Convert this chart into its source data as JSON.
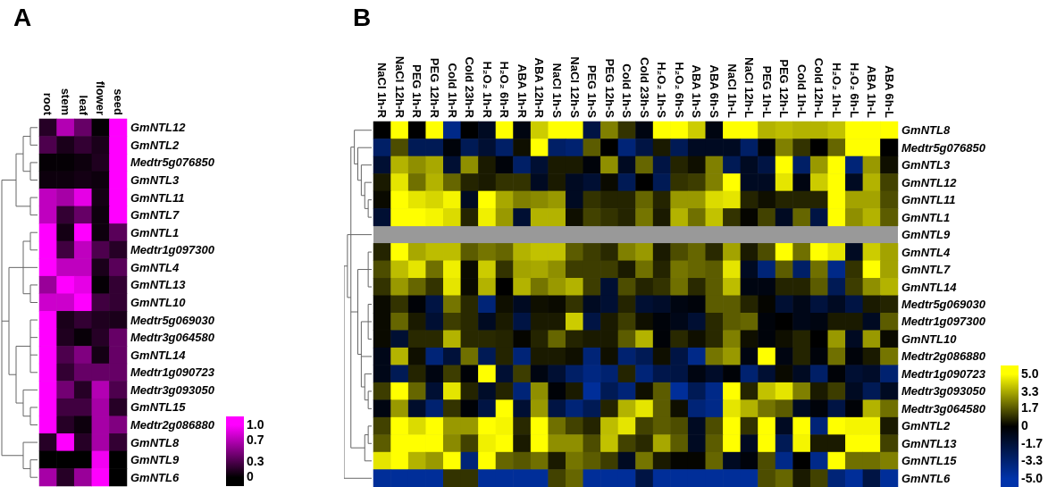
{
  "chart_data": [
    {
      "type": "heatmap",
      "title": "A",
      "categories": [
        "root",
        "stem",
        "leaf",
        "flower",
        "seed"
      ],
      "y_categories": [
        "GmNTL12",
        "GmNTL2",
        "Medtr5g076850",
        "GmNTL3",
        "GmNTL11",
        "GmNTL7",
        "GmNTL1",
        "Medtr1g097300",
        "GmNTL4",
        "GmNTL13",
        "GmNTL10",
        "Medtr5g069030",
        "Medtr3g064580",
        "GmNTL14",
        "Medtr1g090723",
        "Medtr3g093050",
        "GmNTL15",
        "Medtr2g086880",
        "GmNTL8",
        "GmNTL9",
        "GmNTL6"
      ],
      "cells": [
        [
          0.15,
          0.7,
          0.4,
          0.02,
          1
        ],
        [
          0.3,
          0.1,
          0.2,
          0.1,
          1
        ],
        [
          0.02,
          0.02,
          0.05,
          0.12,
          1
        ],
        [
          0.05,
          0.05,
          0.08,
          0.05,
          1
        ],
        [
          0.75,
          0.65,
          0.9,
          0.08,
          1
        ],
        [
          0.75,
          0.2,
          0.4,
          0.05,
          1
        ],
        [
          1,
          0.08,
          1,
          0.05,
          0.35
        ],
        [
          1,
          0.25,
          0.75,
          0.3,
          0.15
        ],
        [
          1,
          0.75,
          0.75,
          0.1,
          0.35
        ],
        [
          0.6,
          1,
          0.9,
          0.02,
          0.2
        ],
        [
          0.8,
          0.8,
          1,
          0.25,
          0.2
        ],
        [
          1,
          0.1,
          0.2,
          0.12,
          0.1
        ],
        [
          1,
          0.12,
          0.03,
          0.15,
          0.4
        ],
        [
          1,
          0.3,
          0.5,
          0.08,
          0.4
        ],
        [
          1,
          0.2,
          0.4,
          0.4,
          0.4
        ],
        [
          1,
          0.45,
          0.15,
          0.7,
          0.3
        ],
        [
          1,
          0.25,
          0.25,
          0.65,
          0.15
        ],
        [
          1,
          0.15,
          0.05,
          0.65,
          0.5
        ],
        [
          0.15,
          1,
          0.15,
          0.65,
          0.2
        ],
        [
          0,
          0,
          0,
          0.95,
          0
        ],
        [
          0.65,
          0.15,
          0.6,
          1,
          0
        ]
      ],
      "clim": [
        0,
        1
      ],
      "cticks": [
        {
          "value": 1,
          "label": "1.0"
        },
        0.7,
        0.3,
        0
      ]
    },
    {
      "type": "heatmap",
      "title": "B",
      "categories": [
        "NaCl 1h-R",
        "NaCl 12h-R",
        "PEG 1h-R",
        "PEG 12h-R",
        "Cold 1h-R",
        "Cold 23h-R",
        "H₂O₂ 1h-R",
        "H₂O₂ 6h-R",
        "ABA 1h-R",
        "ABA 12h-R",
        "NaCl 1h-S",
        "NaCl 12h-S",
        "PEG 1h-S",
        "PEG 12h-S",
        "Cold 1h-S",
        "Cold 23h-S",
        "H₂O₂ 1h-S",
        "H₂O₂ 6h-S",
        "ABA 1h-S",
        "ABA 6h-S",
        "NaCl 1h-L",
        "NaCl 12h-L",
        "PEG 1h-L",
        "PEG 12h-L",
        "Cold 1h-L",
        "Cold 12h-L",
        "H₂O₂ 1h-L",
        "H₂O₂ 6h-L",
        "ABA 1h-L",
        "ABA 6h-L"
      ],
      "y_categories": [
        "GmNTL8",
        "Medtr5g076850",
        "GmNTL3",
        "GmNTL12",
        "GmNTL11",
        "GmNTL1",
        "GmNTL9",
        "GmNTL4",
        "GmNTL7",
        "GmNTL14",
        "Medtr5g069030",
        "Medtr1g097300",
        "GmNTL10",
        "Medtr2g086880",
        "Medtr1g090723",
        "Medtr3g093050",
        "Medtr3g064580",
        "GmNTL2",
        "GmNTL13",
        "GmNTL15",
        "GmNTL6"
      ],
      "cells": [
        [
          0,
          5,
          0,
          5,
          -4,
          0,
          -1,
          5,
          -0.5,
          4,
          5,
          5,
          -2,
          2.5,
          1,
          -0.5,
          5,
          5,
          4,
          -0.5,
          5,
          5,
          3.5,
          3.7,
          3.5,
          3.5,
          3.8,
          5,
          5,
          5
        ],
        [
          -3,
          1.5,
          -2.5,
          -2.5,
          -0.3,
          -2.5,
          -1.5,
          -3,
          0.3,
          5,
          -3,
          -3.3,
          1.8,
          0,
          -3.5,
          -2,
          0.5,
          -2.5,
          -1,
          -1,
          -1,
          -3,
          -0.3,
          2.5,
          1,
          0,
          2,
          5,
          5,
          0
        ],
        [
          -1.5,
          3.5,
          2.8,
          3.3,
          -1.5,
          2.8,
          0.5,
          -0.3,
          -3,
          -1.5,
          0.5,
          0.5,
          -0.3,
          2.8,
          -1,
          2,
          -2,
          0.7,
          0.3,
          2.5,
          -2.5,
          -1,
          -2,
          5,
          -3,
          3,
          5,
          -3.5,
          3,
          0.3
        ],
        [
          0.5,
          4.5,
          2.2,
          3.5,
          2,
          0.7,
          0.5,
          1,
          1,
          -1,
          0.5,
          -1,
          -1.5,
          0.2,
          -2.5,
          0,
          -2.5,
          1,
          1.2,
          2.5,
          5,
          -1,
          -1,
          4.5,
          -0.5,
          4,
          5,
          -1,
          3.5,
          1.3
        ],
        [
          0.2,
          5,
          4.5,
          4.2,
          4.8,
          -1,
          5,
          3.3,
          2.5,
          2.7,
          3,
          -1,
          1,
          0.7,
          0.7,
          2,
          0.7,
          3,
          3,
          4.3,
          4.5,
          0.7,
          0.3,
          0.7,
          0.7,
          0.7,
          5,
          3.2,
          3.2,
          1.5
        ],
        [
          -1.5,
          5,
          5,
          4.8,
          4.3,
          0.7,
          4.7,
          3,
          -1.5,
          3.5,
          3.5,
          0.3,
          1.3,
          1,
          0.7,
          2.3,
          0.5,
          3.5,
          2.2,
          3.8,
          1,
          0.1,
          1.3,
          -1,
          2,
          -2,
          5,
          2.8,
          3.5,
          1.8
        ],
        [
          null,
          null,
          null,
          null,
          null,
          null,
          null,
          null,
          null,
          null,
          null,
          null,
          null,
          null,
          null,
          null,
          null,
          null,
          null,
          null,
          null,
          null,
          null,
          null,
          null,
          null,
          null,
          null,
          null,
          null
        ],
        [
          0.7,
          5,
          3.3,
          3.7,
          3.7,
          1.8,
          2.3,
          2,
          3.5,
          3.8,
          3.8,
          1.8,
          1.2,
          0.8,
          2.5,
          3,
          0.5,
          1.5,
          2,
          0.8,
          3.2,
          0.5,
          1.5,
          5,
          2.2,
          5,
          4.5,
          -1,
          4,
          3.2
        ],
        [
          1.5,
          3.7,
          4.5,
          2.2,
          4.7,
          0.2,
          4,
          1,
          3.2,
          3.3,
          2.8,
          1.2,
          1.2,
          1.2,
          0.5,
          2.2,
          0.7,
          2.3,
          2,
          1.8,
          4.5,
          -1,
          -3.5,
          1.8,
          -3,
          2.2,
          -4,
          1,
          5,
          3.2
        ],
        [
          1,
          3,
          2,
          1,
          4.5,
          0.2,
          3.5,
          0,
          3.5,
          2.3,
          3,
          3.5,
          1.2,
          -1.5,
          1.5,
          0.7,
          1,
          2.2,
          0.8,
          1.8,
          3.7,
          -0.5,
          -0.5,
          0.7,
          0.7,
          1.8,
          -2.5,
          1.2,
          2.8,
          3.5
        ],
        [
          0.2,
          1,
          -0.2,
          -2,
          2.3,
          0.8,
          -3.5,
          0.3,
          -1,
          0.3,
          0.2,
          1,
          -1,
          -1.5,
          0.7,
          -1.5,
          -1.2,
          -0.5,
          -0.3,
          1.8,
          1.8,
          0.7,
          0.1,
          -1.5,
          -0.7,
          -1.8,
          -1,
          -2,
          0.5,
          0.7
        ],
        [
          0.2,
          2,
          0.5,
          -1.5,
          1.2,
          0.8,
          -1,
          0.5,
          -2,
          0.5,
          0.5,
          4,
          -2,
          0.5,
          1.2,
          0.3,
          -0.3,
          -0.7,
          -1.5,
          0.8,
          1.8,
          2,
          -0.3,
          0,
          -0.7,
          -0.5,
          0.5,
          0.5,
          -1,
          1.8
        ],
        [
          0.2,
          -1.5,
          0.8,
          0.8,
          3.5,
          0.8,
          0.8,
          0.7,
          0.1,
          0.7,
          2,
          0.7,
          0.5,
          0.5,
          1.8,
          3.5,
          -0.2,
          0.8,
          0.3,
          0.8,
          2.5,
          0.3,
          -0.3,
          0.3,
          0.7,
          0,
          3,
          -1,
          3,
          0.2
        ],
        [
          -0.7,
          3.5,
          0.3,
          -3.5,
          -1.7,
          2.2,
          -2.5,
          0.7,
          -3.5,
          0.5,
          0.5,
          0.3,
          -3.5,
          0.3,
          -3.3,
          -2.5,
          0.3,
          -2,
          -4,
          2.3,
          3,
          -0.5,
          5,
          -0.5,
          0.7,
          -0.3,
          2.2,
          -0.3,
          0.5,
          2.3
        ],
        [
          -0.7,
          -2.5,
          0.7,
          -0.5,
          1.2,
          -0.2,
          5,
          -1.5,
          1.2,
          -0.5,
          -1.5,
          -3,
          -3.8,
          -3.3,
          0.7,
          -3.5,
          -2.2,
          -2,
          -0.5,
          -1.2,
          -0.2,
          -3.3,
          -1.5,
          0.2,
          -1,
          -3,
          -0.2,
          -1.5,
          -1.2,
          -3.3
        ],
        [
          1.2,
          5,
          2,
          -1.5,
          4.5,
          0.7,
          -1.2,
          0.7,
          -3.5,
          2.8,
          -0.2,
          0.5,
          -4.5,
          -2.5,
          -3.5,
          0.3,
          1.8,
          -4.5,
          -2.5,
          -4,
          5,
          0.7,
          3.8,
          4.5,
          2.5,
          0.5,
          1.2,
          -1,
          -2.5,
          -1
        ],
        [
          -0.5,
          3,
          -1.3,
          -3.3,
          1,
          -0.2,
          -2,
          5,
          -1.5,
          3,
          -2,
          -3.5,
          -2.5,
          0.7,
          3.5,
          4.5,
          1.8,
          0.3,
          -3.5,
          -4,
          4.5,
          3.5,
          2.3,
          1.8,
          -1,
          -0.3,
          -2,
          -0.2,
          3.5,
          2.2
        ],
        [
          1.3,
          5,
          4.3,
          5,
          3,
          3,
          5,
          4.8,
          0.8,
          5,
          2.2,
          1.3,
          0.7,
          3.7,
          4.5,
          1.3,
          1.8,
          1.5,
          -1,
          1.5,
          5,
          1,
          5,
          -1,
          5,
          -3.5,
          5,
          4.8,
          4.8,
          0.5
        ],
        [
          1.8,
          5,
          5,
          5,
          2.7,
          1.3,
          4.7,
          5,
          0.5,
          5,
          2.8,
          2.8,
          1.5,
          3.8,
          1.3,
          0.8,
          3.3,
          1.8,
          -1,
          1.8,
          5,
          -1,
          5,
          -2.5,
          4.8,
          0.5,
          0.5,
          5,
          5,
          1.3
        ],
        [
          4.5,
          5,
          3.5,
          3,
          5,
          -3.5,
          5,
          2,
          1.7,
          2.2,
          0.5,
          2.3,
          1.8,
          1.2,
          -1,
          2.3,
          0.5,
          0.1,
          0.1,
          2,
          -1,
          -0.3,
          1.5,
          -4,
          0,
          -4,
          5,
          2.2,
          2.2,
          2.5
        ],
        [
          -4.5,
          -4.5,
          -4.5,
          -4.5,
          1,
          1,
          -4.5,
          -4.5,
          -4.5,
          -4.5,
          1.3,
          2,
          -4.5,
          -4.5,
          -4.5,
          -2,
          -4.5,
          -4.5,
          -4.5,
          -4.5,
          -4.5,
          -4.5,
          1.5,
          2,
          0.5,
          1.3,
          -3.5,
          -4.5,
          -2,
          -4.5
        ]
      ],
      "clim": [
        -5,
        5
      ],
      "cticks": [
        {
          "value": 5,
          "label": "5.0"
        },
        3.3,
        1.7,
        0,
        -1.7,
        -3.3,
        {
          "value": -5,
          "label": "-5.0"
        }
      ]
    }
  ]
}
